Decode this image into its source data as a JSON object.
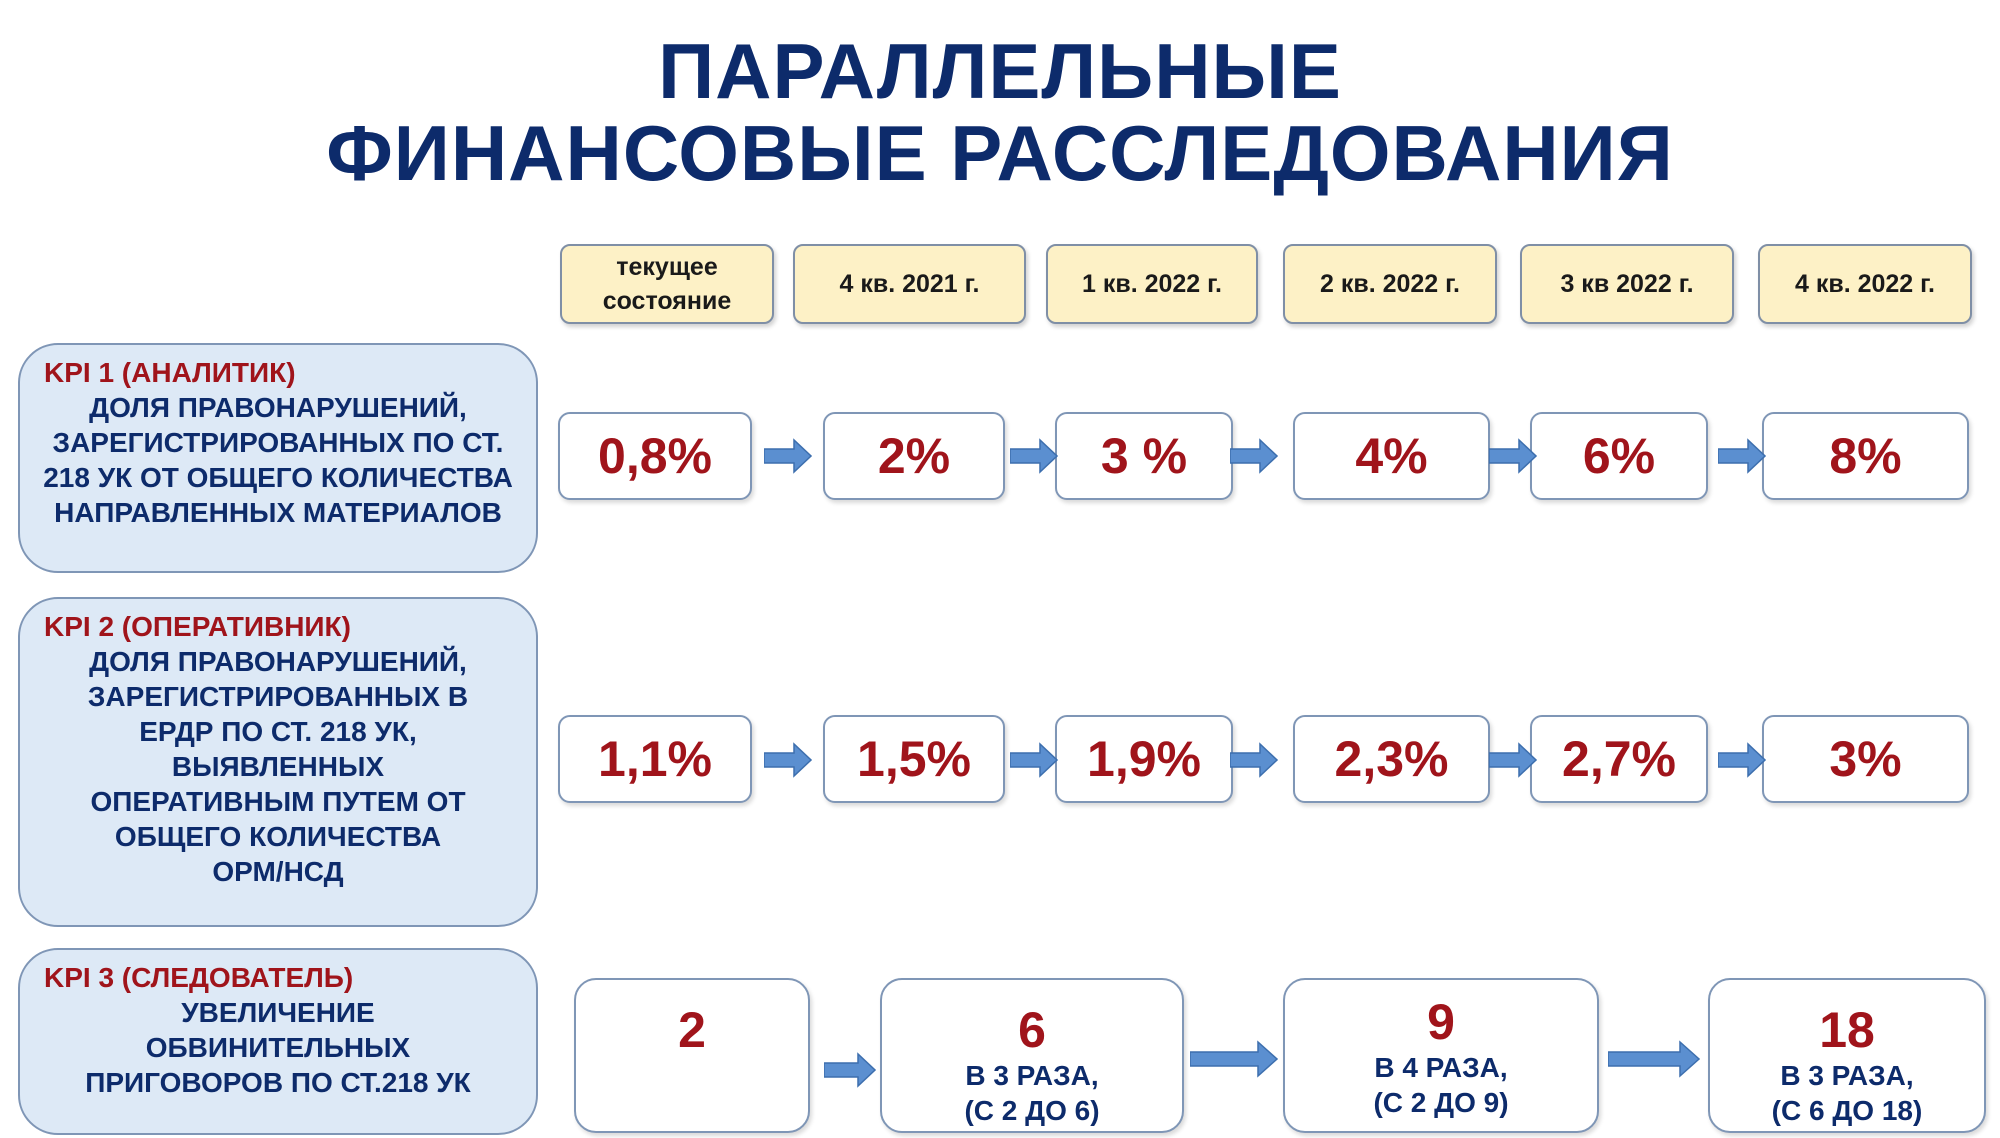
{
  "title": {
    "line1": "ПАРАЛЛЕЛЬНЫЕ",
    "line2": "ФИНАНСОВЫЕ РАССЛЕДОВАНИЯ"
  },
  "periods": [
    "текущее состояние",
    "4 кв. 2021 г.",
    "1 кв. 2022 г.",
    "2 кв. 2022 г.",
    "3 кв 2022 г.",
    "4 кв. 2022 г."
  ],
  "kpi1": {
    "title": "KPI 1 (АНАЛИТИК)",
    "description": "ДОЛЯ ПРАВОНАРУШЕНИЙ, ЗАРЕГИСТРИРОВАННЫХ ПО СТ. 218 УК ОТ ОБЩЕГО КОЛИЧЕСТВА НАПРАВЛЕННЫХ МАТЕРИАЛОВ",
    "values": [
      "0,8%",
      "2%",
      "3 %",
      "4%",
      "6%",
      "8%"
    ]
  },
  "kpi2": {
    "title": "KPI 2 (ОПЕРАТИВНИК)",
    "description": "ДОЛЯ ПРАВОНАРУШЕНИЙ, ЗАРЕГИСТРИРОВАННЫХ В ЕРДР ПО СТ. 218 УК, ВЫЯВЛЕННЫХ ОПЕРАТИВНЫМ ПУТЕМ ОТ ОБЩЕГО КОЛИЧЕСТВА ОРМ/НСД",
    "values": [
      "1,1%",
      "1,5%",
      "1,9%",
      "2,3%",
      "2,7%",
      "3%"
    ]
  },
  "kpi3": {
    "title": "KPI 3 (СЛЕДОВАТЕЛЬ)",
    "description": "УВЕЛИЧЕНИЕ ОБВИНИТЕЛЬНЫХ ПРИГОВОРОВ ПО СТ.218 УК",
    "steps": [
      {
        "value": "2",
        "note1": "",
        "note2": ""
      },
      {
        "value": "6",
        "note1": "В 3 РАЗА,",
        "note2": "(С 2 ДО 6)"
      },
      {
        "value": "9",
        "note1": "В 4 РАЗА,",
        "note2": "(С 2 ДО 9)"
      },
      {
        "value": "18",
        "note1": "В 3 РАЗА,",
        "note2": "(С 6 ДО 18)"
      }
    ]
  },
  "colors": {
    "title": "#0d2b6b",
    "accent_red": "#a0141b",
    "period_bg": "#fdf1c6",
    "kpi_bg": "#dde9f6",
    "arrow": "#5b8fd0"
  },
  "icons": {
    "arrow": "arrow-right-icon"
  }
}
